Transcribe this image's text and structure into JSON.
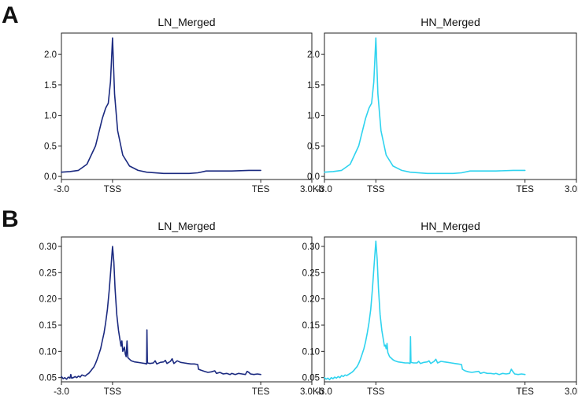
{
  "colors": {
    "LN_Merged": "#1b2a80",
    "HN_Merged": "#2fd3ef"
  },
  "panels": [
    {
      "letter": "A"
    },
    {
      "letter": "B"
    }
  ],
  "chart_data": [
    {
      "panel": "A",
      "type": "line",
      "title": "LN_Merged",
      "x_ticks": [
        "-3.0",
        "TSS",
        "TES",
        "3.0Kb"
      ],
      "y_ticks": [
        "0.0",
        "0.5",
        "1.0",
        "1.5",
        "2.0"
      ],
      "ylim": [
        -0.05,
        2.35
      ],
      "grid": false,
      "series": [
        {
          "color": "#1b2a80",
          "points": [
            [
              -3.0,
              0.07
            ],
            [
              -2.5,
              0.08
            ],
            [
              -2.0,
              0.1
            ],
            [
              -1.5,
              0.2
            ],
            [
              -1.0,
              0.5
            ],
            [
              -0.6,
              0.95
            ],
            [
              -0.4,
              1.12
            ],
            [
              -0.25,
              1.2
            ],
            [
              -0.12,
              1.55
            ],
            [
              0.0,
              2.27
            ],
            [
              0.12,
              1.35
            ],
            [
              0.3,
              0.75
            ],
            [
              0.6,
              0.35
            ],
            [
              1.0,
              0.17
            ],
            [
              1.5,
              0.1
            ],
            [
              2.0,
              0.07
            ],
            [
              3.0,
              0.05
            ],
            [
              4.0,
              0.05
            ],
            [
              4.5,
              0.05
            ],
            [
              5.0,
              0.06
            ],
            [
              5.5,
              0.09
            ],
            [
              6.0,
              0.09
            ],
            [
              7.0,
              0.09
            ],
            [
              8.0,
              0.1
            ],
            [
              8.7,
              0.1
            ]
          ]
        }
      ]
    },
    {
      "panel": "A",
      "type": "line",
      "title": "HN_Merged",
      "x_ticks": [
        "-3.0",
        "TSS",
        "TES",
        "3.0Kb"
      ],
      "y_ticks": [
        "0.0",
        "0.5",
        "1.0",
        "1.5",
        "2.0"
      ],
      "ylim": [
        -0.05,
        2.35
      ],
      "grid": false,
      "series": [
        {
          "color": "#2fd3ef",
          "points": [
            [
              -3.0,
              0.07
            ],
            [
              -2.5,
              0.08
            ],
            [
              -2.0,
              0.1
            ],
            [
              -1.5,
              0.2
            ],
            [
              -1.0,
              0.5
            ],
            [
              -0.6,
              0.95
            ],
            [
              -0.4,
              1.12
            ],
            [
              -0.25,
              1.2
            ],
            [
              -0.12,
              1.55
            ],
            [
              0.0,
              2.27
            ],
            [
              0.12,
              1.35
            ],
            [
              0.3,
              0.75
            ],
            [
              0.6,
              0.35
            ],
            [
              1.0,
              0.17
            ],
            [
              1.5,
              0.1
            ],
            [
              2.0,
              0.07
            ],
            [
              3.0,
              0.05
            ],
            [
              4.0,
              0.05
            ],
            [
              4.5,
              0.05
            ],
            [
              5.0,
              0.06
            ],
            [
              5.5,
              0.09
            ],
            [
              6.0,
              0.09
            ],
            [
              7.0,
              0.09
            ],
            [
              8.0,
              0.1
            ],
            [
              8.7,
              0.1
            ]
          ]
        }
      ]
    },
    {
      "panel": "B",
      "type": "line",
      "title": "LN_Merged",
      "x_ticks": [
        "-3.0",
        "TSS",
        "TES",
        "3.0Kb"
      ],
      "y_ticks": [
        "0.05",
        "0.10",
        "0.15",
        "0.20",
        "0.25",
        "0.30"
      ],
      "ylim": [
        0.042,
        0.318
      ],
      "grid": false,
      "series": [
        {
          "color": "#1b2a80",
          "points": [
            [
              -3.0,
              0.052
            ],
            [
              -2.9,
              0.048
            ],
            [
              -2.8,
              0.05
            ],
            [
              -2.7,
              0.047
            ],
            [
              -2.6,
              0.051
            ],
            [
              -2.5,
              0.049
            ],
            [
              -2.45,
              0.056
            ],
            [
              -2.4,
              0.049
            ],
            [
              -2.3,
              0.05
            ],
            [
              -2.2,
              0.052
            ],
            [
              -2.1,
              0.05
            ],
            [
              -2.0,
              0.053
            ],
            [
              -1.9,
              0.051
            ],
            [
              -1.8,
              0.055
            ],
            [
              -1.7,
              0.054
            ],
            [
              -1.6,
              0.053
            ],
            [
              -1.5,
              0.056
            ],
            [
              -1.4,
              0.058
            ],
            [
              -1.3,
              0.062
            ],
            [
              -1.2,
              0.066
            ],
            [
              -1.1,
              0.07
            ],
            [
              -1.0,
              0.077
            ],
            [
              -0.9,
              0.085
            ],
            [
              -0.8,
              0.095
            ],
            [
              -0.7,
              0.105
            ],
            [
              -0.6,
              0.12
            ],
            [
              -0.5,
              0.135
            ],
            [
              -0.4,
              0.155
            ],
            [
              -0.3,
              0.18
            ],
            [
              -0.2,
              0.215
            ],
            [
              -0.1,
              0.255
            ],
            [
              0.0,
              0.3
            ],
            [
              0.08,
              0.27
            ],
            [
              0.15,
              0.22
            ],
            [
              0.25,
              0.17
            ],
            [
              0.35,
              0.14
            ],
            [
              0.45,
              0.12
            ],
            [
              0.5,
              0.11
            ],
            [
              0.55,
              0.12
            ],
            [
              0.6,
              0.1
            ],
            [
              0.7,
              0.108
            ],
            [
              0.75,
              0.095
            ],
            [
              0.8,
              0.09
            ],
            [
              0.85,
              0.12
            ],
            [
              0.9,
              0.088
            ],
            [
              1.0,
              0.085
            ],
            [
              1.1,
              0.082
            ],
            [
              1.3,
              0.08
            ],
            [
              1.5,
              0.079
            ],
            [
              1.7,
              0.078
            ],
            [
              1.9,
              0.077
            ],
            [
              2.0,
              0.076
            ],
            [
              2.02,
              0.141
            ],
            [
              2.05,
              0.078
            ],
            [
              2.2,
              0.077
            ],
            [
              2.4,
              0.078
            ],
            [
              2.5,
              0.082
            ],
            [
              2.6,
              0.076
            ],
            [
              2.8,
              0.079
            ],
            [
              3.0,
              0.08
            ],
            [
              3.1,
              0.083
            ],
            [
              3.2,
              0.077
            ],
            [
              3.4,
              0.081
            ],
            [
              3.5,
              0.086
            ],
            [
              3.6,
              0.077
            ],
            [
              3.8,
              0.082
            ],
            [
              4.0,
              0.079
            ],
            [
              4.2,
              0.078
            ],
            [
              4.4,
              0.077
            ],
            [
              4.6,
              0.076
            ],
            [
              4.8,
              0.076
            ],
            [
              5.0,
              0.075
            ],
            [
              5.05,
              0.066
            ],
            [
              5.2,
              0.064
            ],
            [
              5.4,
              0.062
            ],
            [
              5.6,
              0.06
            ],
            [
              5.8,
              0.061
            ],
            [
              6.0,
              0.063
            ],
            [
              6.1,
              0.058
            ],
            [
              6.3,
              0.06
            ],
            [
              6.5,
              0.057
            ],
            [
              6.7,
              0.058
            ],
            [
              6.9,
              0.056
            ],
            [
              7.0,
              0.058
            ],
            [
              7.2,
              0.056
            ],
            [
              7.4,
              0.058
            ],
            [
              7.6,
              0.057
            ],
            [
              7.8,
              0.056
            ],
            [
              7.9,
              0.062
            ],
            [
              8.0,
              0.06
            ],
            [
              8.1,
              0.057
            ],
            [
              8.3,
              0.056
            ],
            [
              8.5,
              0.057
            ],
            [
              8.7,
              0.056
            ]
          ]
        }
      ]
    },
    {
      "panel": "B",
      "type": "line",
      "title": "HN_Merged",
      "x_ticks": [
        "-3.0",
        "TSS",
        "TES",
        "3.0Kb"
      ],
      "y_ticks": [
        "0.05",
        "0.10",
        "0.15",
        "0.20",
        "0.25",
        "0.30"
      ],
      "ylim": [
        0.042,
        0.318
      ],
      "grid": false,
      "series": [
        {
          "color": "#2fd3ef",
          "points": [
            [
              -3.0,
              0.05
            ],
            [
              -2.9,
              0.047
            ],
            [
              -2.8,
              0.049
            ],
            [
              -2.7,
              0.046
            ],
            [
              -2.6,
              0.05
            ],
            [
              -2.5,
              0.048
            ],
            [
              -2.4,
              0.051
            ],
            [
              -2.3,
              0.049
            ],
            [
              -2.2,
              0.052
            ],
            [
              -2.1,
              0.05
            ],
            [
              -2.0,
              0.054
            ],
            [
              -1.9,
              0.052
            ],
            [
              -1.8,
              0.055
            ],
            [
              -1.7,
              0.054
            ],
            [
              -1.6,
              0.056
            ],
            [
              -1.5,
              0.058
            ],
            [
              -1.4,
              0.06
            ],
            [
              -1.3,
              0.063
            ],
            [
              -1.2,
              0.067
            ],
            [
              -1.1,
              0.071
            ],
            [
              -1.0,
              0.077
            ],
            [
              -0.9,
              0.085
            ],
            [
              -0.8,
              0.095
            ],
            [
              -0.7,
              0.105
            ],
            [
              -0.6,
              0.118
            ],
            [
              -0.5,
              0.135
            ],
            [
              -0.4,
              0.155
            ],
            [
              -0.3,
              0.18
            ],
            [
              -0.2,
              0.22
            ],
            [
              -0.1,
              0.265
            ],
            [
              0.0,
              0.31
            ],
            [
              0.08,
              0.275
            ],
            [
              0.15,
              0.22
            ],
            [
              0.25,
              0.17
            ],
            [
              0.35,
              0.14
            ],
            [
              0.45,
              0.12
            ],
            [
              0.5,
              0.11
            ],
            [
              0.55,
              0.112
            ],
            [
              0.6,
              0.105
            ],
            [
              0.65,
              0.115
            ],
            [
              0.7,
              0.098
            ],
            [
              0.8,
              0.09
            ],
            [
              0.9,
              0.087
            ],
            [
              1.0,
              0.084
            ],
            [
              1.1,
              0.082
            ],
            [
              1.3,
              0.08
            ],
            [
              1.5,
              0.079
            ],
            [
              1.7,
              0.078
            ],
            [
              1.9,
              0.078
            ],
            [
              2.0,
              0.077
            ],
            [
              2.02,
              0.128
            ],
            [
              2.05,
              0.079
            ],
            [
              2.2,
              0.078
            ],
            [
              2.4,
              0.078
            ],
            [
              2.5,
              0.081
            ],
            [
              2.6,
              0.077
            ],
            [
              2.8,
              0.079
            ],
            [
              3.0,
              0.08
            ],
            [
              3.1,
              0.082
            ],
            [
              3.2,
              0.077
            ],
            [
              3.4,
              0.081
            ],
            [
              3.5,
              0.085
            ],
            [
              3.6,
              0.078
            ],
            [
              3.8,
              0.081
            ],
            [
              4.0,
              0.08
            ],
            [
              4.2,
              0.079
            ],
            [
              4.4,
              0.078
            ],
            [
              4.6,
              0.077
            ],
            [
              4.8,
              0.076
            ],
            [
              5.0,
              0.075
            ],
            [
              5.05,
              0.066
            ],
            [
              5.2,
              0.063
            ],
            [
              5.4,
              0.061
            ],
            [
              5.6,
              0.06
            ],
            [
              5.8,
              0.061
            ],
            [
              6.0,
              0.062
            ],
            [
              6.1,
              0.058
            ],
            [
              6.3,
              0.06
            ],
            [
              6.5,
              0.058
            ],
            [
              6.7,
              0.058
            ],
            [
              6.9,
              0.057
            ],
            [
              7.0,
              0.058
            ],
            [
              7.2,
              0.056
            ],
            [
              7.4,
              0.058
            ],
            [
              7.6,
              0.057
            ],
            [
              7.8,
              0.058
            ],
            [
              7.9,
              0.066
            ],
            [
              8.0,
              0.061
            ],
            [
              8.1,
              0.057
            ],
            [
              8.3,
              0.056
            ],
            [
              8.5,
              0.057
            ],
            [
              8.7,
              0.056
            ]
          ]
        }
      ]
    }
  ]
}
